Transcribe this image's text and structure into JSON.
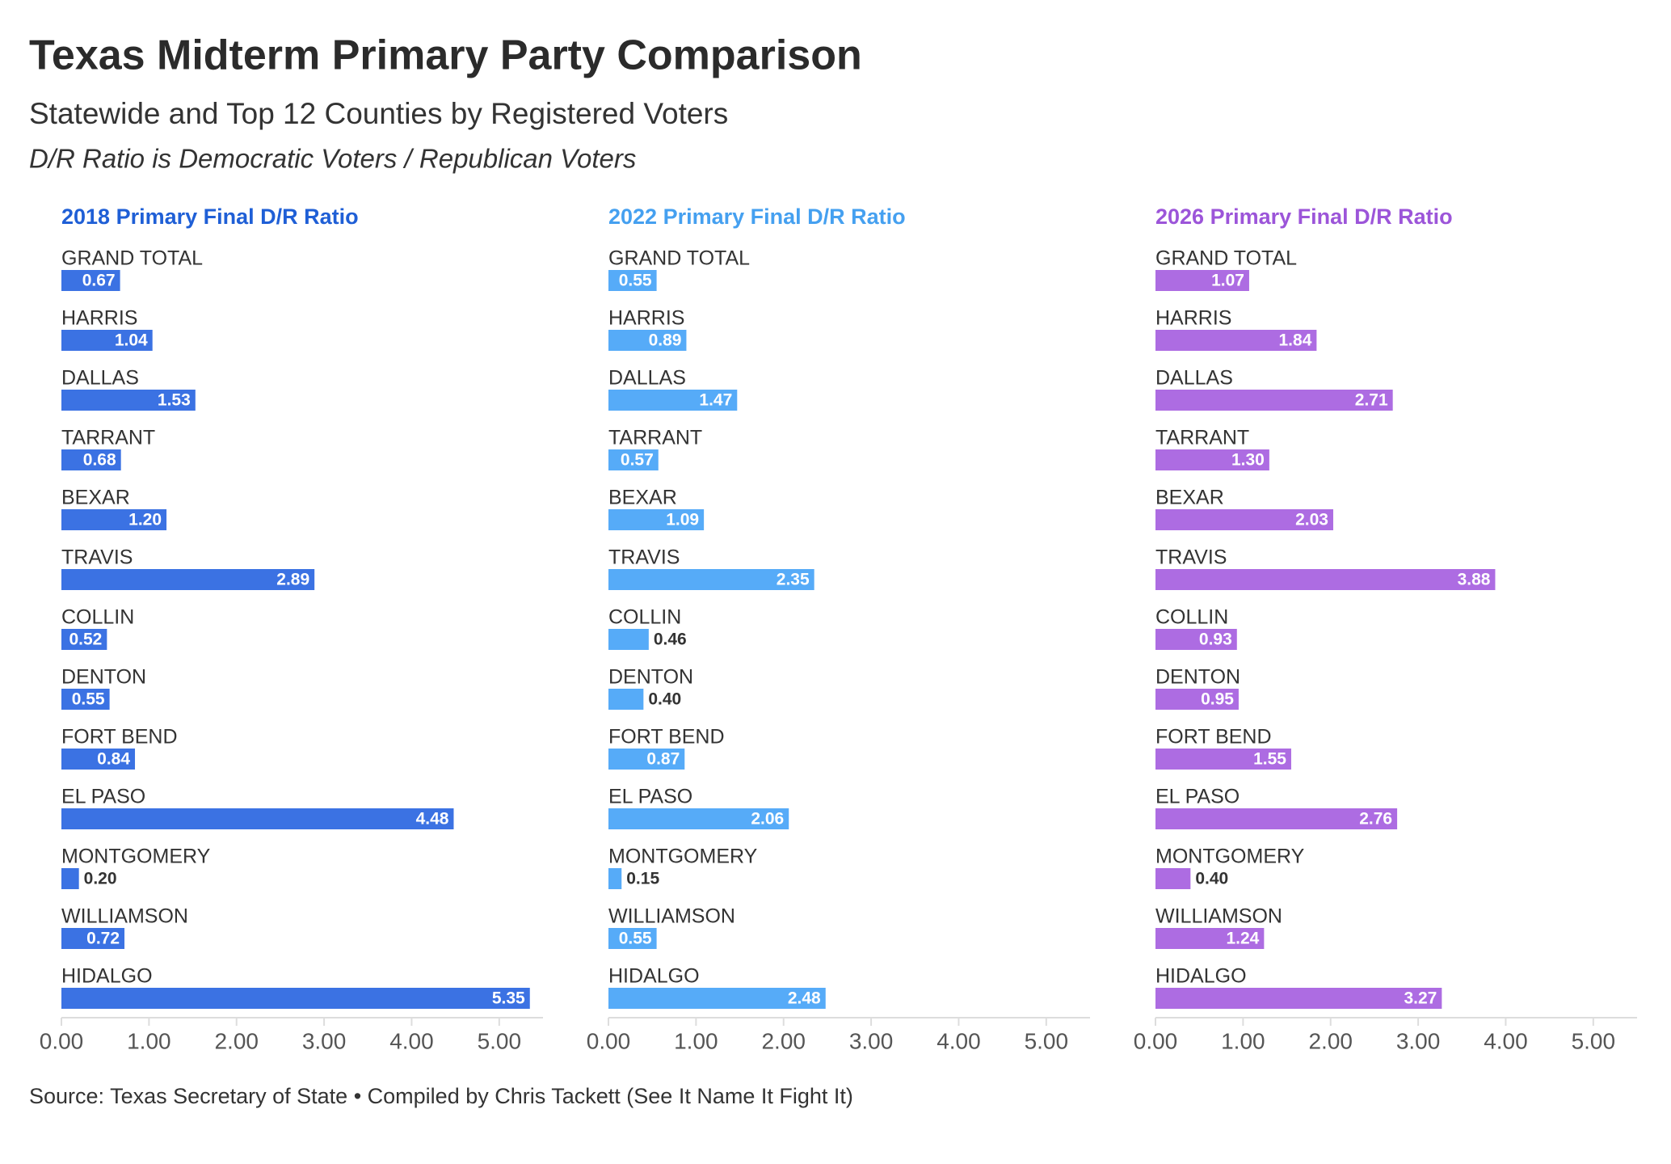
{
  "title": "Texas Midterm Primary Party Comparison",
  "subtitle": "Statewide and Top 12 Counties by Registered Voters",
  "note": "D/R Ratio is Democratic Voters / Republican Voters",
  "source": "Source: Texas Secretary of State • Compiled by Chris Tackett (See It Name It Fight It)",
  "chart_data": [
    {
      "type": "bar",
      "orientation": "horizontal",
      "title": "2018 Primary Final D/R Ratio",
      "title_color": "#1f5fd6",
      "color": "#3b72e3",
      "categories": [
        "GRAND TOTAL",
        "HARRIS",
        "DALLAS",
        "TARRANT",
        "BEXAR",
        "TRAVIS",
        "COLLIN",
        "DENTON",
        "FORT BEND",
        "EL PASO",
        "MONTGOMERY",
        "WILLIAMSON",
        "HIDALGO"
      ],
      "values": [
        0.67,
        1.04,
        1.53,
        0.68,
        1.2,
        2.89,
        0.52,
        0.55,
        0.84,
        4.48,
        0.2,
        0.72,
        5.35
      ],
      "value_labels": [
        "0.67",
        "1.04",
        "1.53",
        "0.68",
        "1.20",
        "2.89",
        "0.52",
        "0.55",
        "0.84",
        "4.48",
        "0.20",
        "0.72",
        "5.35"
      ],
      "xlim": [
        0,
        5.5
      ],
      "xticks": [
        {
          "value": 0,
          "label": "0.00"
        },
        {
          "value": 1,
          "label": "1.00"
        },
        {
          "value": 2,
          "label": "2.00"
        },
        {
          "value": 3,
          "label": "3.00"
        },
        {
          "value": 4,
          "label": "4.00"
        },
        {
          "value": 5,
          "label": "5.00"
        }
      ]
    },
    {
      "type": "bar",
      "orientation": "horizontal",
      "title": "2022 Primary Final D/R Ratio",
      "title_color": "#45a0f0",
      "color": "#56abf8",
      "categories": [
        "GRAND TOTAL",
        "HARRIS",
        "DALLAS",
        "TARRANT",
        "BEXAR",
        "TRAVIS",
        "COLLIN",
        "DENTON",
        "FORT BEND",
        "EL PASO",
        "MONTGOMERY",
        "WILLIAMSON",
        "HIDALGO"
      ],
      "values": [
        0.55,
        0.89,
        1.47,
        0.57,
        1.09,
        2.35,
        0.46,
        0.4,
        0.87,
        2.06,
        0.15,
        0.55,
        2.48
      ],
      "value_labels": [
        "0.55",
        "0.89",
        "1.47",
        "0.57",
        "1.09",
        "2.35",
        "0.46",
        "0.40",
        "0.87",
        "2.06",
        "0.15",
        "0.55",
        "2.48"
      ],
      "xlim": [
        0,
        5.5
      ],
      "xticks": [
        {
          "value": 0,
          "label": "0.00"
        },
        {
          "value": 1,
          "label": "1.00"
        },
        {
          "value": 2,
          "label": "2.00"
        },
        {
          "value": 3,
          "label": "3.00"
        },
        {
          "value": 4,
          "label": "4.00"
        },
        {
          "value": 5,
          "label": "5.00"
        }
      ]
    },
    {
      "type": "bar",
      "orientation": "horizontal",
      "title": "2026 Primary Final D/R Ratio",
      "title_color": "#9c55d9",
      "color": "#ad6ce2",
      "categories": [
        "GRAND TOTAL",
        "HARRIS",
        "DALLAS",
        "TARRANT",
        "BEXAR",
        "TRAVIS",
        "COLLIN",
        "DENTON",
        "FORT BEND",
        "EL PASO",
        "MONTGOMERY",
        "WILLIAMSON",
        "HIDALGO"
      ],
      "values": [
        1.07,
        1.84,
        2.71,
        1.3,
        2.03,
        3.88,
        0.93,
        0.95,
        1.55,
        2.76,
        0.4,
        1.24,
        3.27
      ],
      "value_labels": [
        "1.07",
        "1.84",
        "2.71",
        "1.30",
        "2.03",
        "3.88",
        "0.93",
        "0.95",
        "1.55",
        "2.76",
        "0.40",
        "1.24",
        "3.27"
      ],
      "xlim": [
        0,
        5.5
      ],
      "xticks": [
        {
          "value": 0,
          "label": "0.00"
        },
        {
          "value": 1,
          "label": "1.00"
        },
        {
          "value": 2,
          "label": "2.00"
        },
        {
          "value": 3,
          "label": "3.00"
        },
        {
          "value": 4,
          "label": "4.00"
        },
        {
          "value": 5,
          "label": "5.00"
        }
      ]
    }
  ]
}
